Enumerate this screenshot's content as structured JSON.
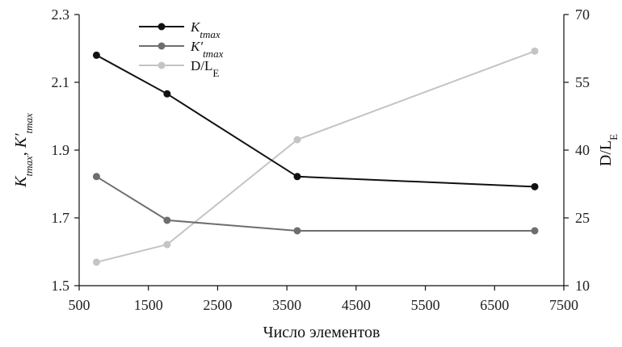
{
  "chart_data": {
    "type": "line",
    "xlabel": "Число элементов",
    "ylabel_left": {
      "main1": "K",
      "sub1": "tmax",
      "sep": ", ",
      "main2": "K′",
      "sub2": "tmax"
    },
    "ylabel_right": {
      "main": "D/L",
      "sub": "E"
    },
    "xlim": [
      500,
      7500
    ],
    "ylim_left": [
      1.5,
      2.3
    ],
    "ylim_right": [
      10,
      70
    ],
    "x_ticks": [
      "500",
      "1500",
      "2500",
      "3500",
      "4500",
      "5500",
      "6500",
      "7500"
    ],
    "y_left_ticks": [
      "1.5",
      "1.7",
      "1.9",
      "2.1",
      "2.3"
    ],
    "y_right_ticks": [
      "10",
      "25",
      "40",
      "55",
      "70"
    ],
    "grid": false,
    "legend_position": "top-left",
    "series": [
      {
        "name": "Ktmax",
        "legend": {
          "main": "K",
          "sub": "tmax"
        },
        "axis": "left",
        "color": "#111111",
        "x": [
          750,
          1770,
          3650,
          7080
        ],
        "y": [
          2.18,
          2.066,
          1.822,
          1.792
        ]
      },
      {
        "name": "K′tmax",
        "legend": {
          "main": "K′",
          "sub": "tmax"
        },
        "axis": "left",
        "color": "#6e6e6e",
        "x": [
          750,
          1770,
          3650,
          7080
        ],
        "y": [
          1.822,
          1.693,
          1.662,
          1.662
        ]
      },
      {
        "name": "D/LE",
        "legend": {
          "main": "D/L",
          "sub": "E"
        },
        "axis": "right",
        "color": "#c4c4c4",
        "x": [
          750,
          1770,
          3650,
          7080
        ],
        "y": [
          15.2,
          19.1,
          42.3,
          61.9
        ]
      }
    ]
  }
}
